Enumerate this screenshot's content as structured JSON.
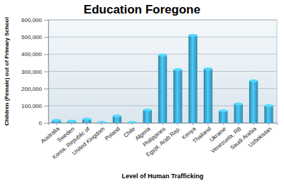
{
  "chart_data": {
    "type": "bar",
    "title": "Education Foregone",
    "x_label": "Level of Human Trafficking",
    "y_label": "Children (Female) out of Primary School",
    "categories": [
      "Australia",
      "Sweden",
      "Korea, Republic of",
      "United Kingdom",
      "Poland",
      "Chile",
      "Algeria",
      "Philippines",
      "Egypt, Arab Rep.",
      "Kenya",
      "Thailand",
      "Ukraine",
      "Venezuela, RB",
      "Saudi Arabia",
      "Uzbekistan"
    ],
    "values": [
      15000,
      10000,
      22000,
      2000,
      40000,
      2000,
      75000,
      395000,
      310000,
      510000,
      315000,
      70000,
      110000,
      245000,
      100000
    ],
    "color": "#3a9fc4",
    "ylim": [
      0,
      600000
    ],
    "yticks": [
      0,
      {
        "value": 100000,
        "label": "100,000"
      },
      {
        "value": 200000,
        "label": "200,000"
      },
      {
        "value": 300000,
        "label": "300,000"
      },
      {
        "value": 400000,
        "label": "400,000"
      },
      {
        "value": 500000,
        "label": "500,000"
      },
      {
        "value": 600000,
        "label": "600,000"
      }
    ],
    "grid": true
  }
}
